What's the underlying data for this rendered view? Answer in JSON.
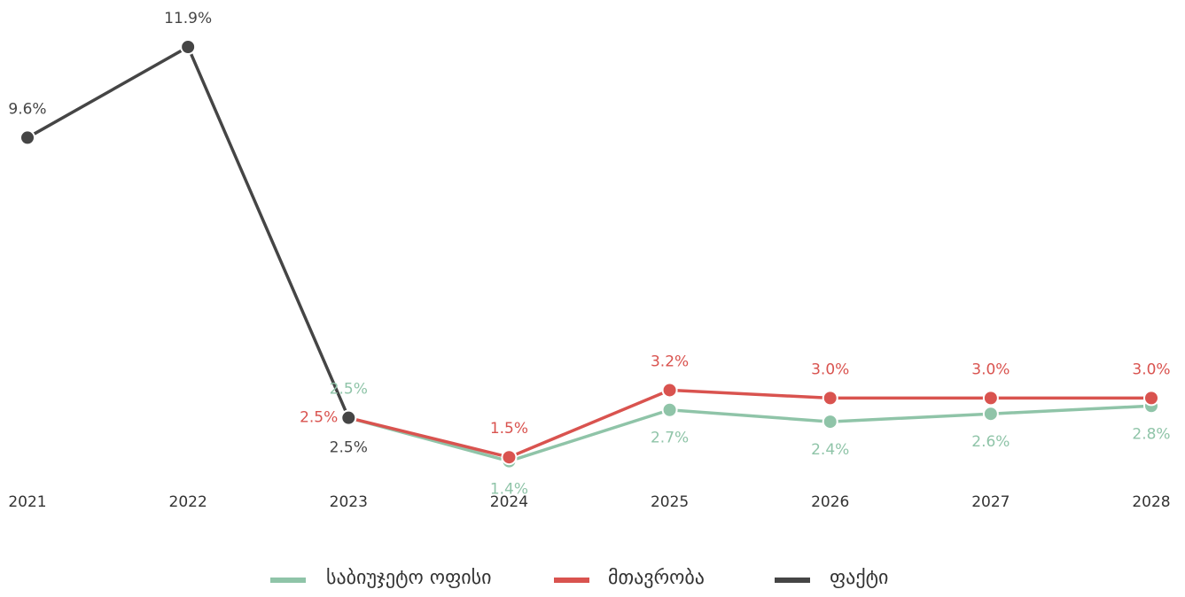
{
  "chart_data": {
    "type": "line",
    "categories": [
      "2021",
      "2022",
      "2023",
      "2024",
      "2025",
      "2026",
      "2027",
      "2028"
    ],
    "series": [
      {
        "name": "საბიუჯეტო ოფისი",
        "color": "#8fc4a8",
        "values": [
          null,
          null,
          2.5,
          1.4,
          2.7,
          2.4,
          2.6,
          2.8
        ],
        "value_labels": [
          null,
          null,
          "2.5%",
          "1.4%",
          "2.7%",
          "2.4%",
          "2.6%",
          "2.8%"
        ]
      },
      {
        "name": "მთავრობა",
        "color": "#d9534f",
        "values": [
          null,
          null,
          2.5,
          1.5,
          3.2,
          3.0,
          3.0,
          3.0
        ],
        "value_labels": [
          null,
          null,
          "2.5%",
          "1.5%",
          "3.2%",
          "3.0%",
          "3.0%",
          "3.0%"
        ]
      },
      {
        "name": "ფაქტი",
        "color": "#454545",
        "values": [
          9.6,
          11.9,
          2.5,
          null,
          null,
          null,
          null,
          null
        ],
        "value_labels": [
          "9.6%",
          "11.9%",
          "2.5%",
          null,
          null,
          null,
          null,
          null
        ]
      }
    ],
    "ylim": [
      0,
      13
    ]
  }
}
